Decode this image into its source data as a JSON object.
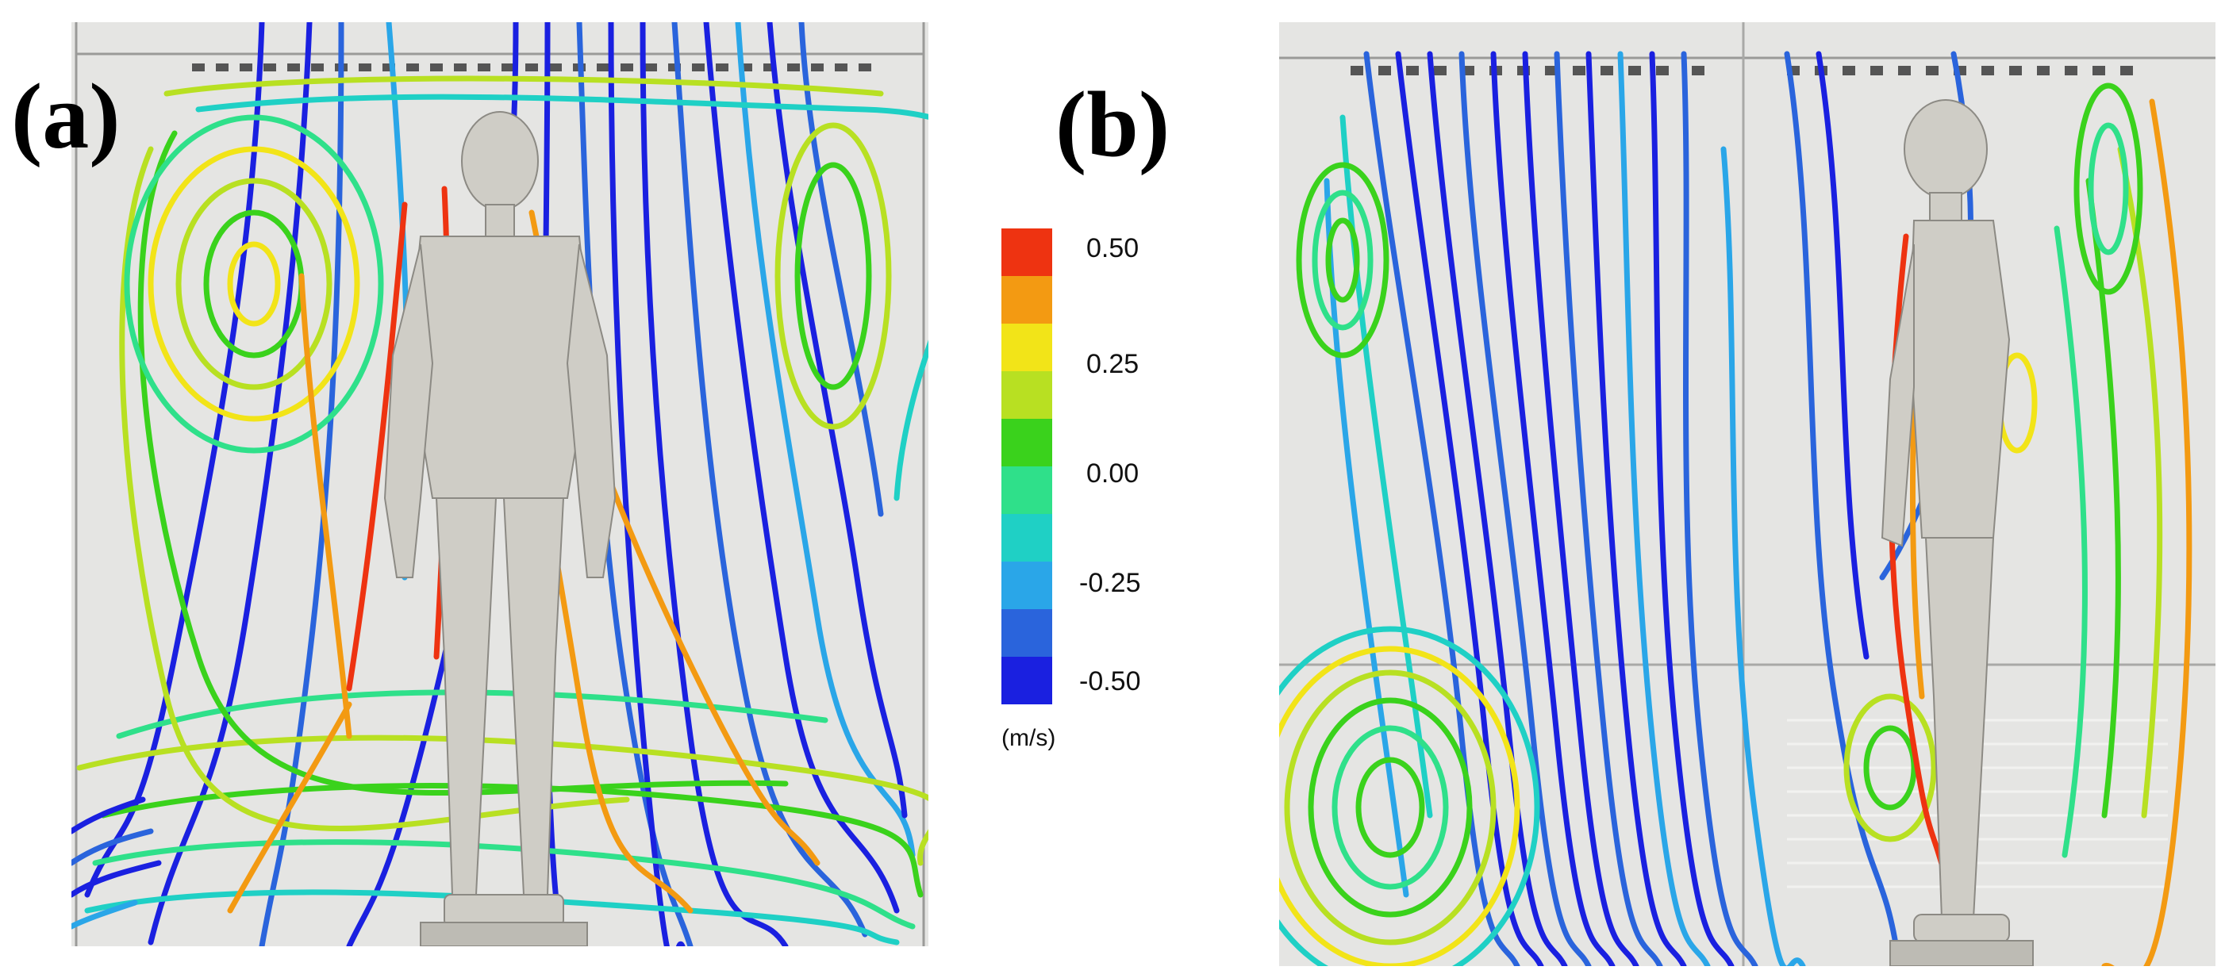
{
  "panels": [
    {
      "id": "a",
      "label": "(a)"
    },
    {
      "id": "b",
      "label": "(b)"
    }
  ],
  "colorbar": {
    "ticks": [
      "0.50",
      "0.25",
      "0.00",
      "-0.25",
      "-0.50"
    ],
    "unit": "(m/s)",
    "colors": [
      "#ee3311",
      "#f39a12",
      "#f2e418",
      "#b8e022",
      "#3ad21c",
      "#2fe08a",
      "#1fd0c5",
      "#2aa6e8",
      "#2a64dc",
      "#1a20e0"
    ]
  }
}
